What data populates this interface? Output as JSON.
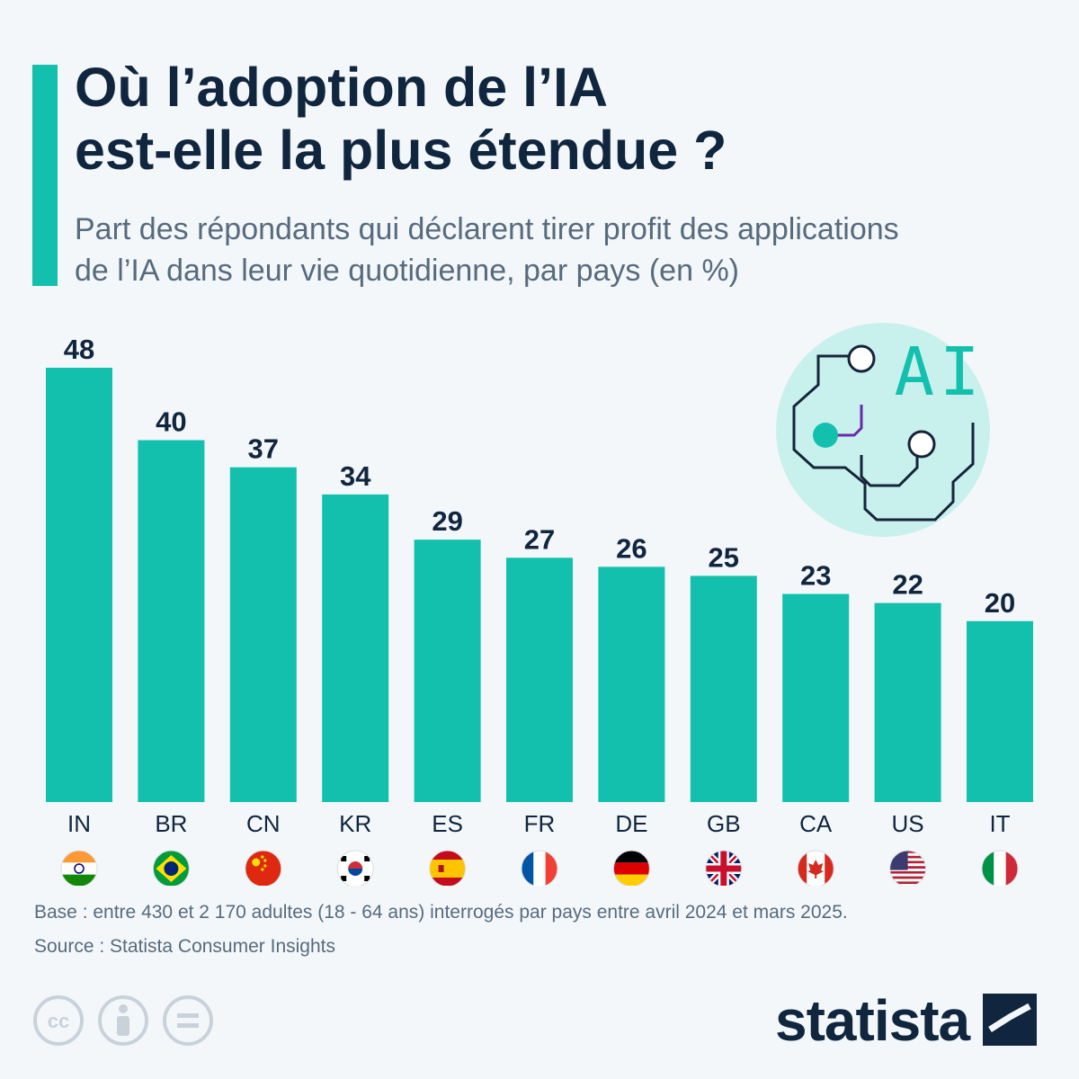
{
  "header": {
    "title_line1": "Où l’adoption de l’IA",
    "title_line2": "est-elle la plus étendue ?",
    "subtitle_line1": "Part des répondants qui déclarent tirer profit des applications",
    "subtitle_line2": "de l’IA dans leur vie quotidienne, par pays (en %)"
  },
  "chart_data": {
    "type": "bar",
    "categories": [
      "IN",
      "BR",
      "CN",
      "KR",
      "ES",
      "FR",
      "DE",
      "GB",
      "CA",
      "US",
      "IT"
    ],
    "values": [
      48,
      40,
      37,
      34,
      29,
      27,
      26,
      25,
      23,
      22,
      20
    ],
    "ylim": [
      0,
      48
    ],
    "grid": false,
    "bar_color": "#13c0ad",
    "label_color": "#10263f"
  },
  "illustration": {
    "label": "AI",
    "icon": "ai-circuit-icon"
  },
  "footer": {
    "base": "Base : entre 430 et 2 170 adultes (18 - 64 ans) interrogés par pays entre avril 2024 et mars 2025.",
    "source": "Source : Statista Consumer Insights"
  },
  "brand": {
    "name": "statista"
  },
  "license_icons": [
    "cc-icon",
    "attribution-icon",
    "no-derivatives-icon"
  ]
}
